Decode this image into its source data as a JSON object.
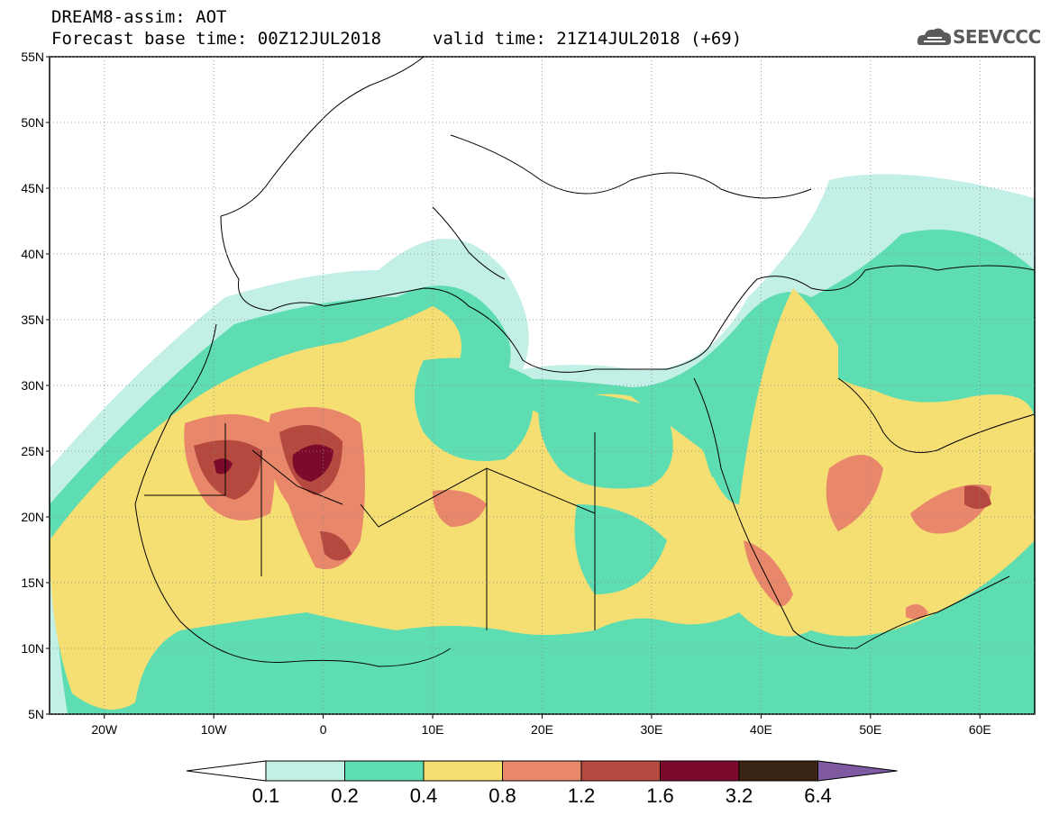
{
  "header": {
    "title": "DREAM8-assim: AOT",
    "base_time": "Forecast base time: 00Z12JUL2018",
    "valid_time": "valid time: 21Z14JUL2018 (+69)"
  },
  "logo": {
    "text": "SEEVCCC",
    "icon": "cloud-icon"
  },
  "map": {
    "lat_labels": [
      "55N",
      "50N",
      "45N",
      "40N",
      "35N",
      "30N",
      "25N",
      "20N",
      "15N",
      "10N",
      "5N"
    ],
    "lon_labels": [
      "20W",
      "10W",
      "0",
      "10E",
      "20E",
      "30E",
      "40E",
      "50E",
      "60E"
    ],
    "extent": {
      "lon_min": -25,
      "lon_max": 65,
      "lat_min": 5,
      "lat_max": 55
    }
  },
  "colorbar": {
    "levels": [
      "0.1",
      "0.2",
      "0.4",
      "0.8",
      "1.2",
      "1.6",
      "3.2",
      "6.4"
    ],
    "colors": [
      "#ffffff",
      "#c2efe6",
      "#5fddb2",
      "#f5df72",
      "#e8876a",
      "#b5483f",
      "#7b0a2b",
      "#3a2414",
      "#7f5aa3"
    ]
  }
}
